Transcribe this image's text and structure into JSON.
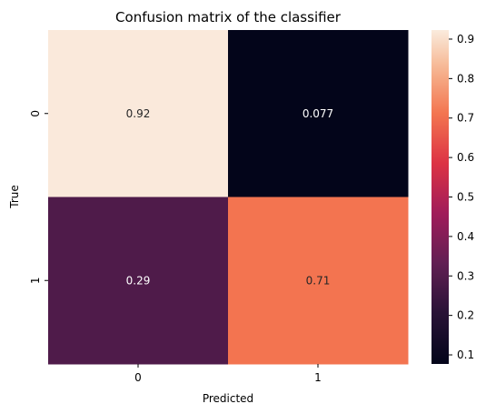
{
  "chart_data": {
    "type": "heatmap",
    "title": "Confusion matrix of the classifier",
    "xlabel": "Predicted",
    "ylabel": "True",
    "x_categories": [
      "0",
      "1"
    ],
    "y_categories": [
      "0",
      "1"
    ],
    "values": [
      [
        0.92,
        0.077
      ],
      [
        0.29,
        0.71
      ]
    ],
    "value_labels": [
      [
        "0.92",
        "0.077"
      ],
      [
        "0.29",
        "0.71"
      ]
    ],
    "colormap": "rocket",
    "colorbar": {
      "range": [
        0.077,
        0.923
      ],
      "ticks": [
        0.1,
        0.2,
        0.3,
        0.4,
        0.5,
        0.6,
        0.7,
        0.8,
        0.9
      ],
      "tick_labels": [
        "0.1",
        "0.2",
        "0.3",
        "0.4",
        "0.5",
        "0.6",
        "0.7",
        "0.8",
        "0.9"
      ]
    },
    "grid": false
  }
}
